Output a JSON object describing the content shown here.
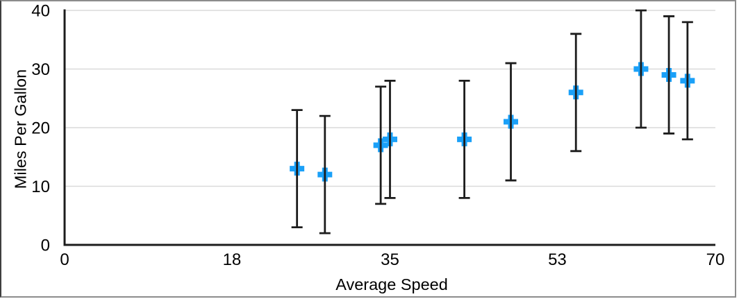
{
  "chart_data": {
    "type": "scatter",
    "title": "",
    "xlabel": "Average Speed",
    "ylabel": "Miles Per Gallon",
    "xlim": [
      0,
      70
    ],
    "ylim": [
      0,
      40
    ],
    "x_ticks": [
      0,
      18,
      35,
      53,
      70
    ],
    "y_ticks": [
      0,
      10,
      20,
      30,
      40
    ],
    "grid": "horizontal",
    "legend_position": "none",
    "marker_style": "plus",
    "error_bars": "symmetric-y",
    "points": [
      {
        "x": 25,
        "y": 13,
        "y_error": 10
      },
      {
        "x": 28,
        "y": 12,
        "y_error": 10
      },
      {
        "x": 34,
        "y": 17,
        "y_error": 10
      },
      {
        "x": 35,
        "y": 18,
        "y_error": 10
      },
      {
        "x": 43,
        "y": 18,
        "y_error": 10
      },
      {
        "x": 48,
        "y": 21,
        "y_error": 10
      },
      {
        "x": 55,
        "y": 26,
        "y_error": 10
      },
      {
        "x": 62,
        "y": 30,
        "y_error": 10
      },
      {
        "x": 65,
        "y": 29,
        "y_error": 10
      },
      {
        "x": 67,
        "y": 28,
        "y_error": 10
      }
    ],
    "colors": {
      "marker": "#1aa0f8",
      "error_bar": "#1c1c1c",
      "axis": "#1c1c1c",
      "gridline": "#dadada",
      "text": "#000000",
      "background": "#ffffff",
      "frame_border": "#8c8c8c"
    }
  }
}
